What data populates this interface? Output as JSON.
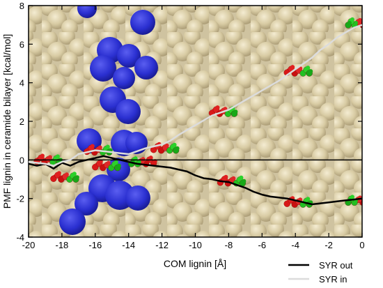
{
  "chart_data": {
    "type": "line",
    "xlabel": "COM lignin [Å]",
    "ylabel": "PMF lignin in ceramide bilayer [kcal/mol]",
    "xlim": [
      -20,
      0
    ],
    "ylim": [
      -4,
      8
    ],
    "x_ticks": [
      "-20",
      "-18",
      "-16",
      "-14",
      "-12",
      "-10",
      "-8",
      "-6",
      "-4",
      "-2",
      "0"
    ],
    "y_ticks": [
      "-4",
      "-2",
      "0",
      "2",
      "4",
      "6",
      "8"
    ],
    "zero_line": 0,
    "grid": false,
    "legend_position": "bottom-right, below plot",
    "background_image": "molecular membrane rendering (tan ceramide spheres, blue atoms, red/green lignin molecules)",
    "series": [
      {
        "name": "SYR out",
        "color": "#000000",
        "x": [
          -20,
          -19.5,
          -19,
          -18.5,
          -18,
          -17.5,
          -17,
          -16.5,
          -16,
          -15.5,
          -15,
          -14.5,
          -14,
          -13.5,
          -13,
          -12.5,
          -12,
          -11.5,
          -11,
          -10.5,
          -10,
          -9.5,
          -9,
          -8.5,
          -8,
          -7.5,
          -7,
          -6.5,
          -6,
          -5.5,
          -5,
          -4.5,
          -4,
          -3.5,
          -3,
          -2.5,
          -2,
          -1.5,
          -1,
          -0.5,
          0
        ],
        "y": [
          -0.2,
          -0.3,
          -0.2,
          -0.45,
          -0.15,
          -0.3,
          -0.1,
          0.0,
          0.1,
          0.2,
          0.1,
          0.0,
          -0.1,
          -0.2,
          -0.25,
          -0.3,
          -0.35,
          -0.4,
          -0.5,
          -0.6,
          -0.8,
          -0.95,
          -1.0,
          -1.1,
          -1.15,
          -1.3,
          -1.45,
          -1.65,
          -1.8,
          -1.9,
          -1.95,
          -2.0,
          -2.1,
          -2.2,
          -2.3,
          -2.25,
          -2.2,
          -2.15,
          -2.1,
          -2.05,
          -2.0
        ]
      },
      {
        "name": "SYR in",
        "color": "#dcdcdc",
        "x": [
          -20,
          -19.5,
          -19,
          -18.5,
          -18,
          -17.5,
          -17,
          -16.5,
          -16,
          -15.5,
          -15,
          -14.5,
          -14,
          -13.5,
          -13,
          -12.5,
          -12,
          -11.5,
          -11,
          -10.5,
          -10,
          -9.5,
          -9,
          -8.5,
          -8,
          -7.5,
          -7,
          -6.5,
          -6,
          -5.5,
          -5,
          -4.5,
          -4,
          -3.5,
          -3,
          -2.5,
          -2,
          -1.5,
          -1,
          -0.5,
          0
        ],
        "y": [
          -0.1,
          -0.15,
          -0.2,
          -0.3,
          -0.1,
          0.0,
          0.3,
          0.4,
          0.5,
          0.45,
          0.4,
          0.35,
          0.3,
          0.45,
          0.6,
          0.7,
          0.8,
          1.0,
          1.3,
          1.55,
          1.8,
          2.05,
          2.3,
          2.45,
          2.6,
          2.85,
          3.1,
          3.35,
          3.6,
          3.85,
          4.1,
          4.4,
          4.7,
          5.0,
          5.3,
          5.7,
          6.0,
          6.35,
          6.6,
          6.85,
          7.0
        ]
      }
    ]
  }
}
